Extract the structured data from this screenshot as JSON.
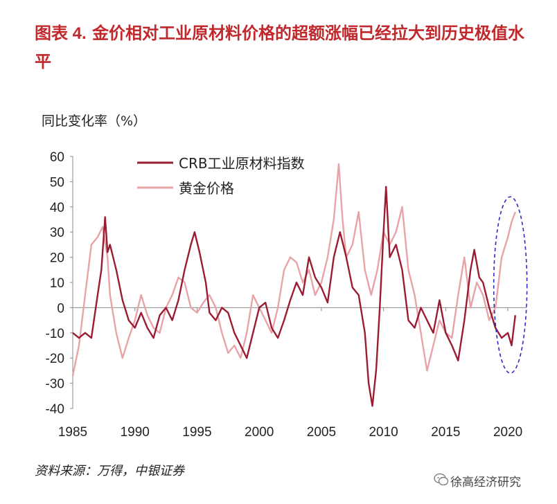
{
  "header": {
    "figure_label": "图表 4.",
    "title": "金价相对工业原材料价格的超额涨幅已经拉大到历史极值水平"
  },
  "chart_data": {
    "type": "line",
    "ylabel": "同比变化率（%）",
    "ylim": [
      -40,
      60
    ],
    "yticks": [
      "60",
      "50",
      "40",
      "30",
      "20",
      "10",
      "0",
      "-10",
      "-20",
      "-30",
      "-40"
    ],
    "xlim": [
      1985,
      2021.5
    ],
    "xticks": [
      "1985",
      "1990",
      "1995",
      "2000",
      "2005",
      "2010",
      "2015",
      "2020"
    ],
    "legend_position": "top-center",
    "colors": {
      "crb": "#9b1b30",
      "gold": "#e8a3a7",
      "highlight": "#2b2bc8"
    },
    "series": [
      {
        "name": "CRB工业原材料指数",
        "key": "crb",
        "points": [
          [
            1985,
            -10
          ],
          [
            1985.5,
            -12
          ],
          [
            1986,
            -10
          ],
          [
            1986.5,
            -12
          ],
          [
            1987,
            5
          ],
          [
            1987.3,
            15
          ],
          [
            1987.6,
            36
          ],
          [
            1987.8,
            22
          ],
          [
            1988,
            25
          ],
          [
            1988.5,
            15
          ],
          [
            1989,
            3
          ],
          [
            1989.5,
            -5
          ],
          [
            1990,
            -8
          ],
          [
            1990.5,
            -2
          ],
          [
            1991,
            -8
          ],
          [
            1991.5,
            -12
          ],
          [
            1992,
            -3
          ],
          [
            1992.5,
            0
          ],
          [
            1993,
            -5
          ],
          [
            1993.5,
            3
          ],
          [
            1994,
            15
          ],
          [
            1994.5,
            25
          ],
          [
            1994.8,
            30
          ],
          [
            1995.2,
            22
          ],
          [
            1995.7,
            10
          ],
          [
            1996,
            -2
          ],
          [
            1996.5,
            -5
          ],
          [
            1997,
            0
          ],
          [
            1997.5,
            -2
          ],
          [
            1998,
            -10
          ],
          [
            1998.5,
            -15
          ],
          [
            1999,
            -20
          ],
          [
            1999.5,
            -10
          ],
          [
            2000,
            0
          ],
          [
            2000.5,
            2
          ],
          [
            2001,
            -8
          ],
          [
            2001.5,
            -12
          ],
          [
            2002,
            -5
          ],
          [
            2002.5,
            3
          ],
          [
            2003,
            10
          ],
          [
            2003.5,
            5
          ],
          [
            2004,
            20
          ],
          [
            2004.5,
            12
          ],
          [
            2005,
            8
          ],
          [
            2005.5,
            2
          ],
          [
            2006,
            20
          ],
          [
            2006.5,
            30
          ],
          [
            2007,
            20
          ],
          [
            2007.5,
            8
          ],
          [
            2008,
            5
          ],
          [
            2008.5,
            -10
          ],
          [
            2008.8,
            -30
          ],
          [
            2009.1,
            -39
          ],
          [
            2009.4,
            -25
          ],
          [
            2009.7,
            0
          ],
          [
            2010,
            30
          ],
          [
            2010.2,
            48
          ],
          [
            2010.5,
            20
          ],
          [
            2011,
            25
          ],
          [
            2011.5,
            15
          ],
          [
            2012,
            -5
          ],
          [
            2012.5,
            -8
          ],
          [
            2013,
            0
          ],
          [
            2013.5,
            -5
          ],
          [
            2014,
            -10
          ],
          [
            2014.5,
            3
          ],
          [
            2015,
            -10
          ],
          [
            2015.5,
            -15
          ],
          [
            2016,
            -21
          ],
          [
            2016.5,
            -5
          ],
          [
            2017,
            15
          ],
          [
            2017.3,
            23
          ],
          [
            2017.7,
            12
          ],
          [
            2018,
            10
          ],
          [
            2018.5,
            0
          ],
          [
            2019,
            -8
          ],
          [
            2019.5,
            -12
          ],
          [
            2020,
            -10
          ],
          [
            2020.3,
            -15
          ],
          [
            2020.6,
            -3
          ]
        ]
      },
      {
        "name": "黄金价格",
        "key": "gold",
        "points": [
          [
            1985,
            -27
          ],
          [
            1985.5,
            -15
          ],
          [
            1986,
            5
          ],
          [
            1986.5,
            25
          ],
          [
            1987,
            28
          ],
          [
            1987.4,
            32
          ],
          [
            1987.8,
            20
          ],
          [
            1988,
            5
          ],
          [
            1988.5,
            -10
          ],
          [
            1989,
            -20
          ],
          [
            1989.5,
            -12
          ],
          [
            1990,
            -5
          ],
          [
            1990.5,
            5
          ],
          [
            1991,
            -3
          ],
          [
            1991.5,
            -8
          ],
          [
            1992,
            -10
          ],
          [
            1992.5,
            0
          ],
          [
            1993,
            5
          ],
          [
            1993.5,
            12
          ],
          [
            1994,
            10
          ],
          [
            1994.5,
            0
          ],
          [
            1995,
            -2
          ],
          [
            1995.5,
            2
          ],
          [
            1996,
            5
          ],
          [
            1996.5,
            0
          ],
          [
            1997,
            -10
          ],
          [
            1997.5,
            -18
          ],
          [
            1998,
            -15
          ],
          [
            1998.5,
            -20
          ],
          [
            1999,
            -10
          ],
          [
            1999.5,
            5
          ],
          [
            2000,
            0
          ],
          [
            2000.5,
            -5
          ],
          [
            2001,
            -10
          ],
          [
            2001.5,
            0
          ],
          [
            2002,
            15
          ],
          [
            2002.5,
            20
          ],
          [
            2003,
            18
          ],
          [
            2003.5,
            10
          ],
          [
            2004,
            15
          ],
          [
            2004.5,
            5
          ],
          [
            2005,
            10
          ],
          [
            2005.5,
            20
          ],
          [
            2006,
            35
          ],
          [
            2006.4,
            57
          ],
          [
            2006.7,
            35
          ],
          [
            2007,
            20
          ],
          [
            2007.5,
            25
          ],
          [
            2008,
            38
          ],
          [
            2008.5,
            15
          ],
          [
            2009,
            5
          ],
          [
            2009.5,
            15
          ],
          [
            2010,
            30
          ],
          [
            2010.5,
            25
          ],
          [
            2011,
            30
          ],
          [
            2011.5,
            40
          ],
          [
            2012,
            15
          ],
          [
            2012.5,
            5
          ],
          [
            2013,
            -10
          ],
          [
            2013.5,
            -25
          ],
          [
            2014,
            -15
          ],
          [
            2014.5,
            -5
          ],
          [
            2015,
            -10
          ],
          [
            2015.5,
            -12
          ],
          [
            2016,
            5
          ],
          [
            2016.5,
            20
          ],
          [
            2017,
            0
          ],
          [
            2017.5,
            10
          ],
          [
            2018,
            5
          ],
          [
            2018.5,
            -5
          ],
          [
            2019,
            0
          ],
          [
            2019.5,
            20
          ],
          [
            2020,
            28
          ],
          [
            2020.3,
            34
          ],
          [
            2020.6,
            38
          ]
        ]
      }
    ]
  },
  "footer": {
    "source": "资料来源：万得，中银证券",
    "brand": "徐高经济研究"
  }
}
